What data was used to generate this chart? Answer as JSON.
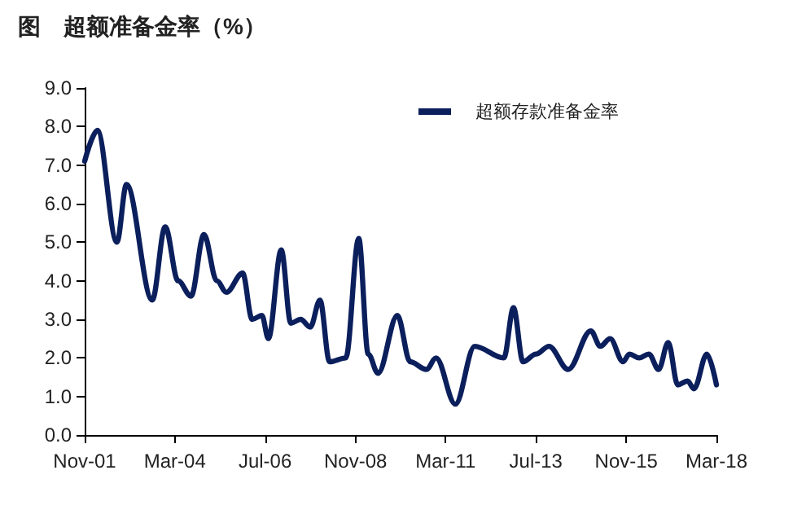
{
  "chart_data": {
    "type": "line",
    "title": "图　超额准备金率（%）",
    "x": [
      "2001-11",
      "2002-03",
      "2002-09",
      "2002-12",
      "2003-08",
      "2003-12",
      "2004-04",
      "2004-08",
      "2004-12",
      "2005-04",
      "2005-07",
      "2005-12",
      "2006-03",
      "2006-06",
      "2006-08",
      "2006-12",
      "2007-03",
      "2007-06",
      "2007-09",
      "2007-12",
      "2008-03",
      "2008-08",
      "2008-12",
      "2009-03",
      "2009-06",
      "2009-12",
      "2010-04",
      "2010-09",
      "2010-12",
      "2011-06",
      "2011-12",
      "2012-09",
      "2012-12",
      "2013-03",
      "2013-07",
      "2013-11",
      "2014-05",
      "2014-12",
      "2015-03",
      "2015-06",
      "2015-10",
      "2015-12",
      "2016-03",
      "2016-06",
      "2016-09",
      "2016-12",
      "2017-03",
      "2017-06",
      "2017-08",
      "2017-12",
      "2018-03"
    ],
    "series": [
      {
        "name": "超额存款准备金率",
        "color": "#0b1f5c",
        "values": [
          7.1,
          7.9,
          5.0,
          6.5,
          3.5,
          5.4,
          4.0,
          3.6,
          5.2,
          4.0,
          3.7,
          4.2,
          3.0,
          3.1,
          2.5,
          4.8,
          2.9,
          3.0,
          2.8,
          3.5,
          1.9,
          2.0,
          5.1,
          2.1,
          1.6,
          3.1,
          1.9,
          1.7,
          2.0,
          0.8,
          2.3,
          2.0,
          3.3,
          1.9,
          2.1,
          2.3,
          1.7,
          2.7,
          2.3,
          2.5,
          1.9,
          2.1,
          2.0,
          2.1,
          1.7,
          2.4,
          1.3,
          1.4,
          1.2,
          2.1,
          1.3
        ]
      }
    ],
    "xlim": [
      "2001-11",
      "2018-03"
    ],
    "xticks": [
      {
        "value": "2001-11",
        "label": "Nov-01"
      },
      {
        "value": "2004-03",
        "label": "Mar-04"
      },
      {
        "value": "2006-07",
        "label": "Jul-06"
      },
      {
        "value": "2008-11",
        "label": "Nov-08"
      },
      {
        "value": "2011-03",
        "label": "Mar-11"
      },
      {
        "value": "2013-07",
        "label": "Jul-13"
      },
      {
        "value": "2015-11",
        "label": "Nov-15"
      },
      {
        "value": "2018-03",
        "label": "Mar-18"
      }
    ],
    "ylim": [
      0,
      9
    ],
    "yticks": [
      {
        "value": 0,
        "label": "0.0"
      },
      {
        "value": 1,
        "label": "1.0"
      },
      {
        "value": 2,
        "label": "2.0"
      },
      {
        "value": 3,
        "label": "3.0"
      },
      {
        "value": 4,
        "label": "4.0"
      },
      {
        "value": 5,
        "label": "5.0"
      },
      {
        "value": 6,
        "label": "6.0"
      },
      {
        "value": 7,
        "label": "7.0"
      },
      {
        "value": 8,
        "label": "8.0"
      },
      {
        "value": 9,
        "label": "9.0"
      }
    ],
    "grid": false,
    "legend": "top right",
    "marker": "none",
    "line_style": "solid"
  }
}
